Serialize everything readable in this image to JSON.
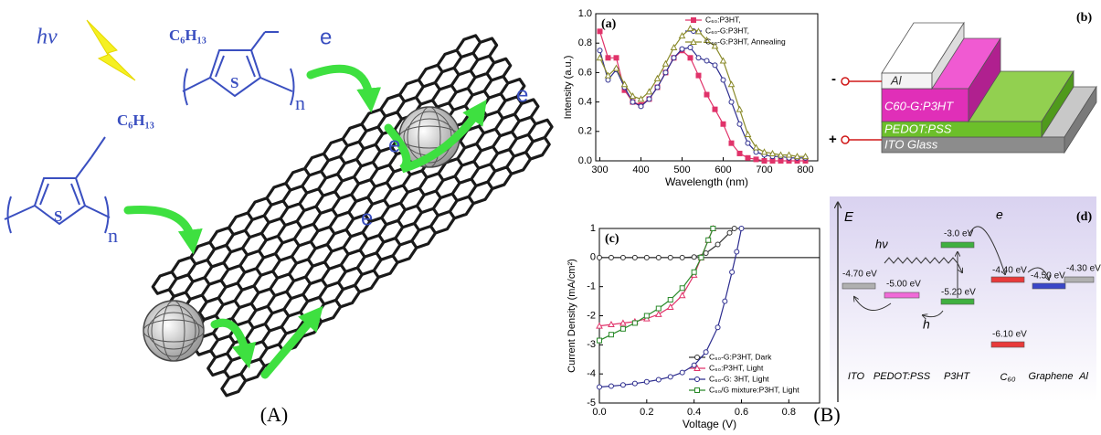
{
  "scheme": {
    "light": "hν",
    "substituents": [
      "C₆H₁₃",
      "C₆H₁₃"
    ],
    "sulfur": [
      "S",
      "S"
    ],
    "repeat": [
      "n",
      "n"
    ],
    "electrons": [
      "e",
      "e",
      "e",
      "e"
    ]
  },
  "chart_data": [
    {
      "type": "line",
      "panel_label": "(a)",
      "x_label": "Wavelength (nm)",
      "y_label": "Intensity (a.u.)",
      "x": [
        300,
        320,
        340,
        360,
        380,
        400,
        420,
        440,
        460,
        480,
        500,
        520,
        540,
        560,
        580,
        600,
        620,
        640,
        660,
        680,
        700,
        720,
        740,
        760,
        780,
        800
      ],
      "xlim": [
        290,
        830
      ],
      "ylim": [
        0,
        1
      ],
      "xticks": [
        300,
        400,
        500,
        600,
        700,
        800
      ],
      "yticks": [
        {
          "value": 0,
          "label": "0.0"
        },
        0.2,
        0.4,
        0.6,
        0.8,
        {
          "value": 1,
          "label": "1.0"
        }
      ],
      "legend": "upper right",
      "series": [
        {
          "name": "C₆₀:P3HT,",
          "color": "#e0336a",
          "marker": "square",
          "filled": true,
          "values": [
            0.88,
            0.7,
            0.7,
            0.48,
            0.4,
            0.38,
            0.42,
            0.5,
            0.6,
            0.7,
            0.75,
            0.7,
            0.58,
            0.45,
            0.35,
            0.25,
            0.12,
            0.05,
            0.02,
            0.01,
            0,
            0,
            0,
            0,
            0,
            0
          ]
        },
        {
          "name": "C₆₀-G:P3HT,",
          "color": "#2c2c8e",
          "marker": "circle",
          "filled": false,
          "values": [
            0.75,
            0.55,
            0.62,
            0.5,
            0.4,
            0.37,
            0.42,
            0.5,
            0.6,
            0.7,
            0.76,
            0.77,
            0.7,
            0.68,
            0.65,
            0.55,
            0.4,
            0.25,
            0.12,
            0.06,
            0.04,
            0.03,
            0.03,
            0.02,
            0.02,
            0.02
          ]
        },
        {
          "name": "C₆₀-G:P3HT, Annealing",
          "color": "#8a8a2a",
          "marker": "triangle",
          "filled": false,
          "values": [
            0.7,
            0.58,
            0.63,
            0.52,
            0.44,
            0.42,
            0.47,
            0.56,
            0.66,
            0.77,
            0.85,
            0.9,
            0.88,
            0.82,
            0.78,
            0.68,
            0.52,
            0.35,
            0.18,
            0.09,
            0.06,
            0.05,
            0.04,
            0.04,
            0.03,
            0.03
          ]
        }
      ]
    },
    {
      "type": "line",
      "panel_label": "(c)",
      "x_label": "Voltage (V)",
      "y_label": "Current Density (mA/cm²)",
      "xlim": [
        0,
        0.93
      ],
      "ylim": [
        -5,
        1
      ],
      "xticks": [
        {
          "value": 0,
          "label": "0.0"
        },
        0.2,
        0.4,
        0.6,
        0.8
      ],
      "yticks": [
        1,
        0,
        -1,
        -2,
        -3,
        -4,
        -5
      ],
      "legend": "lower right",
      "series": [
        {
          "name": "C₆₀-G:P3HT, Dark",
          "color": "#333333",
          "marker": "circle",
          "filled": false,
          "x": [
            0,
            0.05,
            0.1,
            0.15,
            0.2,
            0.25,
            0.3,
            0.35,
            0.4,
            0.45,
            0.5,
            0.55,
            0.57
          ],
          "values": [
            0,
            0,
            0,
            0,
            0,
            0,
            0,
            0,
            0.02,
            0.15,
            0.45,
            0.85,
            1
          ]
        },
        {
          "name": "C₆₀:P3HT, Light",
          "color": "#e0336a",
          "marker": "triangle",
          "filled": false,
          "x": [
            0,
            0.05,
            0.1,
            0.15,
            0.2,
            0.25,
            0.3,
            0.35,
            0.4,
            0.43,
            0.46,
            0.48
          ],
          "values": [
            -2.35,
            -2.3,
            -2.25,
            -2.2,
            -2.1,
            -1.95,
            -1.7,
            -1.3,
            -0.6,
            0,
            0.6,
            1
          ]
        },
        {
          "name": "C₆₀-G: 3HT, Light",
          "color": "#2c2c8e",
          "marker": "circle",
          "filled": false,
          "x": [
            0,
            0.05,
            0.1,
            0.15,
            0.2,
            0.25,
            0.3,
            0.35,
            0.4,
            0.45,
            0.5,
            0.53,
            0.56,
            0.58,
            0.6
          ],
          "values": [
            -4.45,
            -4.42,
            -4.38,
            -4.33,
            -4.27,
            -4.2,
            -4.1,
            -3.95,
            -3.7,
            -3.25,
            -2.4,
            -1.5,
            -0.5,
            0.2,
            1
          ]
        },
        {
          "name": "C₆₀/G mixture:P3HT, Light",
          "color": "#2a8a2a",
          "marker": "square",
          "filled": false,
          "x": [
            0,
            0.05,
            0.1,
            0.15,
            0.2,
            0.25,
            0.3,
            0.35,
            0.4,
            0.43,
            0.46,
            0.48
          ],
          "values": [
            -2.85,
            -2.65,
            -2.45,
            -2.25,
            -2,
            -1.75,
            -1.45,
            -1.05,
            -0.5,
            0,
            0.6,
            1
          ]
        }
      ]
    }
  ],
  "device": {
    "panel_label": "(b)",
    "layers": [
      "Al",
      "C60-G:P3HT",
      "PEDOT:PSS",
      "ITO Glass"
    ],
    "terminals": [
      "-",
      "+"
    ]
  },
  "energy_diagram": {
    "panel_label": "(d)",
    "axis": "E",
    "photon": "hν",
    "electron": "e",
    "hole": "h",
    "levels": [
      "-4.70 eV",
      "-5.00 eV",
      "-3.0 eV",
      "-5.20 eV",
      "-4.40 eV",
      "-6.10 eV",
      "-4.50 eV",
      "-4.30 eV"
    ],
    "materials": [
      "ITO",
      "PEDOT:PSS",
      "P3HT",
      "C₆₀",
      "Graphene",
      "Al"
    ]
  },
  "captions": [
    "(A)",
    "(B)"
  ]
}
